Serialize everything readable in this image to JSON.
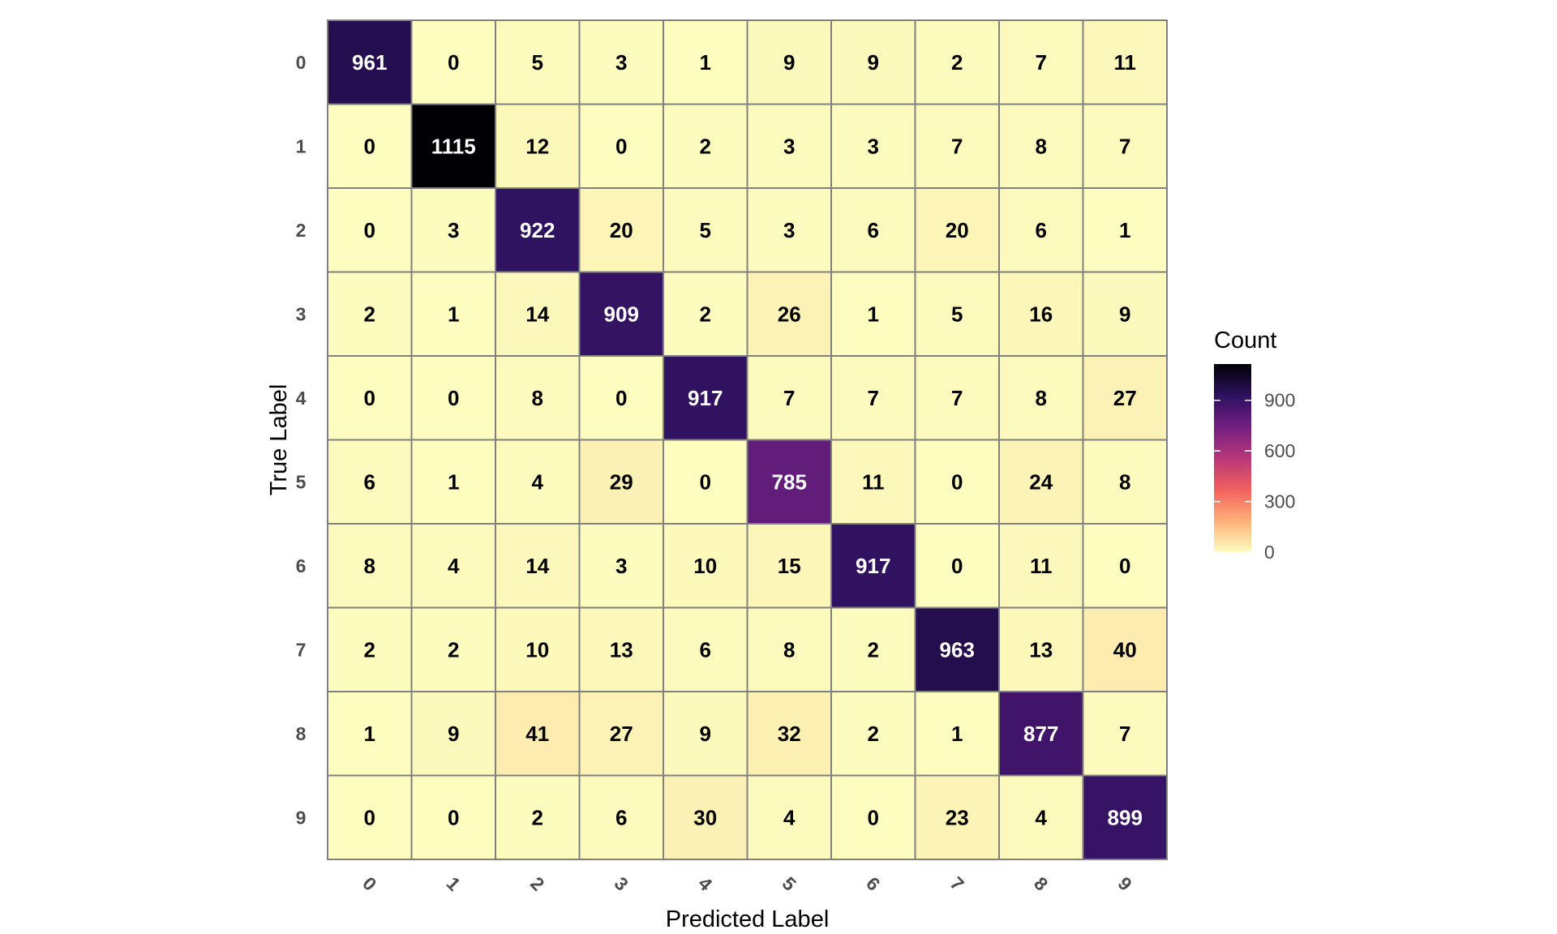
{
  "chart_data": {
    "type": "heatmap",
    "title": "",
    "xlabel": "Predicted Label",
    "ylabel": "True Label",
    "x_categories": [
      "0",
      "1",
      "2",
      "3",
      "4",
      "5",
      "6",
      "7",
      "8",
      "9"
    ],
    "y_categories": [
      "0",
      "1",
      "2",
      "3",
      "4",
      "5",
      "6",
      "7",
      "8",
      "9"
    ],
    "values": [
      [
        961,
        0,
        5,
        3,
        1,
        9,
        9,
        2,
        7,
        11
      ],
      [
        0,
        1115,
        12,
        0,
        2,
        3,
        3,
        7,
        8,
        7
      ],
      [
        0,
        3,
        922,
        20,
        5,
        3,
        6,
        20,
        6,
        1
      ],
      [
        2,
        1,
        14,
        909,
        2,
        26,
        1,
        5,
        16,
        9
      ],
      [
        0,
        0,
        8,
        0,
        917,
        7,
        7,
        7,
        8,
        27
      ],
      [
        6,
        1,
        4,
        29,
        0,
        785,
        11,
        0,
        24,
        8
      ],
      [
        8,
        4,
        14,
        3,
        10,
        15,
        917,
        0,
        11,
        0
      ],
      [
        2,
        2,
        10,
        13,
        6,
        8,
        2,
        963,
        13,
        40
      ],
      [
        1,
        9,
        41,
        27,
        9,
        32,
        2,
        1,
        877,
        7
      ],
      [
        0,
        0,
        2,
        6,
        30,
        4,
        0,
        23,
        4,
        899
      ]
    ],
    "legend": {
      "title": "Count",
      "ticks": [
        0,
        300,
        600,
        900
      ],
      "range": [
        0,
        1115
      ],
      "placement": "right"
    },
    "color_scale": {
      "name": "magma-reversed",
      "stops": [
        "#fcfdbf",
        "#feb078",
        "#f1605d",
        "#b73779",
        "#721f81",
        "#2c115f",
        "#000004"
      ]
    },
    "grid": false
  }
}
